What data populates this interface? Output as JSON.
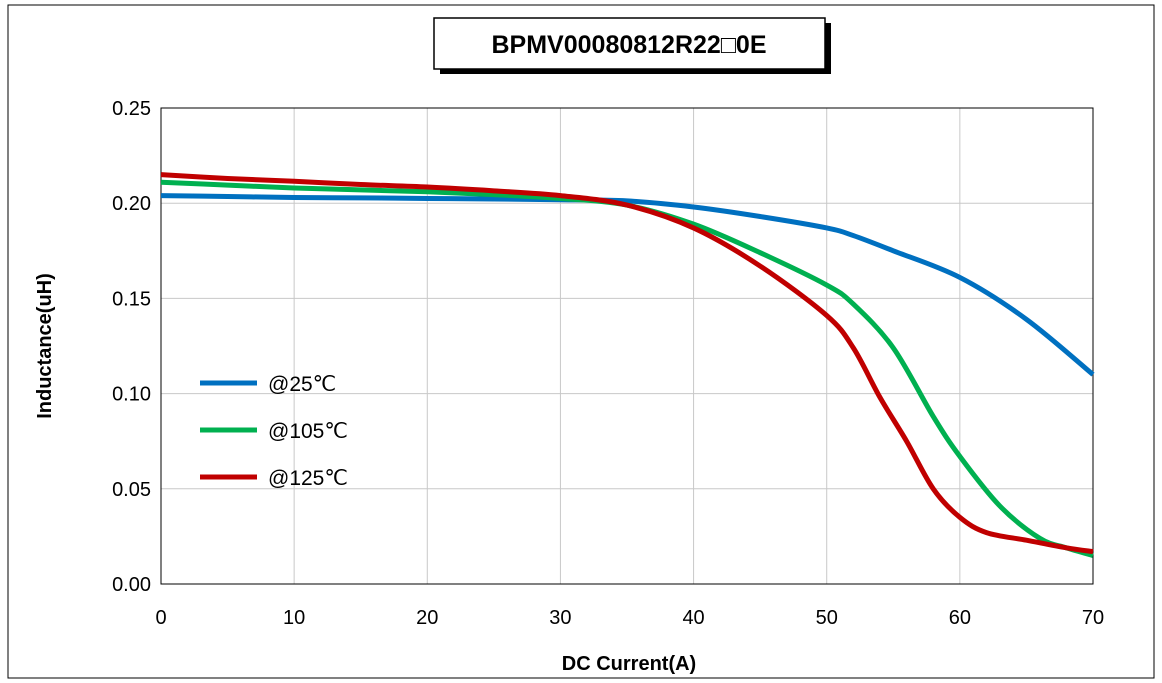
{
  "chart_data": {
    "type": "line",
    "title": "BPMV00080812R22□0E",
    "xlabel": "DC Current(A)",
    "ylabel": "Inductance(uH)",
    "xlim": [
      0,
      70
    ],
    "ylim": [
      0,
      0.25
    ],
    "x_ticks": [
      "0",
      "10",
      "20",
      "30",
      "40",
      "50",
      "60",
      "70"
    ],
    "y_ticks": [
      "0.00",
      "0.05",
      "0.10",
      "0.15",
      "0.20",
      "0.25"
    ],
    "grid": true,
    "legend_position": "left-middle",
    "series": [
      {
        "name": "@25℃",
        "color": "#0070C0",
        "x": [
          0,
          5,
          10,
          15,
          20,
          25,
          30,
          35,
          40,
          45,
          50,
          52,
          55,
          60,
          65,
          70
        ],
        "y": [
          0.204,
          0.2035,
          0.203,
          0.2028,
          0.2025,
          0.2022,
          0.2018,
          0.2012,
          0.198,
          0.193,
          0.187,
          0.183,
          0.175,
          0.161,
          0.139,
          0.11
        ]
      },
      {
        "name": "@105℃",
        "color": "#00B050",
        "x": [
          0,
          5,
          10,
          15,
          20,
          25,
          30,
          35,
          40,
          45,
          50,
          52,
          55,
          58,
          60,
          63,
          66,
          68,
          70
        ],
        "y": [
          0.211,
          0.2095,
          0.208,
          0.207,
          0.206,
          0.2045,
          0.2025,
          0.199,
          0.189,
          0.174,
          0.157,
          0.147,
          0.124,
          0.088,
          0.067,
          0.041,
          0.024,
          0.019,
          0.015
        ]
      },
      {
        "name": "@125℃",
        "color": "#C00000",
        "x": [
          0,
          5,
          10,
          15,
          20,
          25,
          30,
          35,
          40,
          45,
          50,
          52,
          54,
          56,
          58,
          60,
          62,
          65,
          68,
          70
        ],
        "y": [
          0.215,
          0.213,
          0.2115,
          0.2098,
          0.2085,
          0.2065,
          0.204,
          0.199,
          0.187,
          0.167,
          0.141,
          0.124,
          0.098,
          0.075,
          0.05,
          0.035,
          0.027,
          0.023,
          0.019,
          0.017
        ]
      }
    ]
  }
}
